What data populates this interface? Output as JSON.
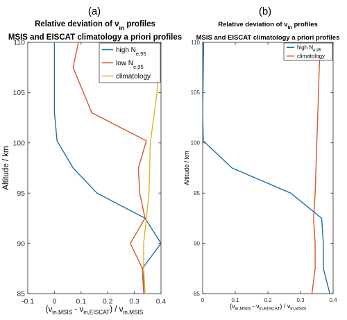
{
  "chart_data": [
    {
      "type": "line",
      "panel_label": "(a)",
      "title_line1": "Relative deviation of ν",
      "title_sub": "in",
      "title_line1_suffix": " profiles",
      "title_line2": "MSIS and EISCAT climatology a priori profiles",
      "xlabel_parts": [
        "(ν",
        "in,MSIS",
        " - ν",
        "in,EISCAT",
        ") / ν",
        "in,MSIS"
      ],
      "ylabel": "Altitude / km",
      "xlim": [
        -0.1,
        0.4
      ],
      "ylim": [
        85,
        110
      ],
      "xticks": [
        -0.1,
        0,
        0.1,
        0.2,
        0.3,
        0.4
      ],
      "xtick_labels": [
        "-0.1",
        "0",
        "0.1",
        "0.2",
        "0.3",
        "0.4"
      ],
      "yticks": [
        85,
        90,
        95,
        100,
        105,
        110
      ],
      "ytick_labels": [
        "85",
        "90",
        "95",
        "100",
        "105",
        "110"
      ],
      "legend_position": "top-right",
      "series": [
        {
          "name": "high N",
          "name_sub": "e,95",
          "color": "#1f6fa8",
          "points": [
            [
              0,
              110
            ],
            [
              0,
              103
            ],
            [
              0.01,
              100.2
            ],
            [
              0.07,
              97.5
            ],
            [
              0.16,
              95
            ],
            [
              0.34,
              92.5
            ],
            [
              0.4,
              90
            ],
            [
              0.33,
              87.5
            ],
            [
              0.34,
              85
            ]
          ]
        },
        {
          "name": "low N",
          "name_sub": "e,95",
          "color": "#d4582a",
          "points": [
            [
              0.09,
              110
            ],
            [
              0.07,
              107.5
            ],
            [
              0.14,
              103
            ],
            [
              0.345,
              100.2
            ],
            [
              0.315,
              97.5
            ],
            [
              0.32,
              95
            ],
            [
              0.34,
              92.5
            ],
            [
              0.285,
              90
            ],
            [
              0.33,
              87.5
            ],
            [
              0.335,
              85
            ]
          ]
        },
        {
          "name": "climatology",
          "name_sub": "",
          "color": "#e3b21b",
          "points": [
            [
              0.395,
              110
            ],
            [
              0.385,
              105
            ],
            [
              0.36,
              100
            ],
            [
              0.355,
              95
            ],
            [
              0.345,
              92.5
            ],
            [
              0.335,
              90
            ],
            [
              0.335,
              87.5
            ],
            [
              0.34,
              85
            ]
          ]
        }
      ]
    },
    {
      "type": "line",
      "panel_label": "(b)",
      "title_line1": "Relative deviation of ν",
      "title_sub": "in",
      "title_line1_suffix": " profiles",
      "title_line2": "MSIS and EISCAT climatology a priori profiles",
      "xlabel_parts": [
        "(ν",
        "in,MSIS",
        " - ν",
        "in,EISCAT",
        ") / ν",
        "in,MSIS"
      ],
      "ylabel": "Altitude / km",
      "xlim": [
        0,
        0.4
      ],
      "ylim": [
        85,
        110
      ],
      "xticks": [
        0,
        0.1,
        0.2,
        0.3,
        0.4
      ],
      "xtick_labels": [
        "0",
        "0.1",
        "0.2",
        "0.3",
        "0.4"
      ],
      "yticks": [
        85,
        90,
        95,
        100,
        105,
        110
      ],
      "ytick_labels": [
        "85",
        "90",
        "95",
        "100",
        "105",
        "110"
      ],
      "legend_position": "top-right",
      "series": [
        {
          "name": "high N",
          "name_sub": "e,95",
          "color": "#1f6fa8",
          "points": [
            [
              0.003,
              110
            ],
            [
              0.001,
              105
            ],
            [
              0.0,
              103
            ],
            [
              0.002,
              100.2
            ],
            [
              0.09,
              97.5
            ],
            [
              0.27,
              95
            ],
            [
              0.365,
              92.5
            ],
            [
              0.37,
              90
            ],
            [
              0.37,
              87.5
            ],
            [
              0.39,
              85
            ]
          ]
        },
        {
          "name": "climatology",
          "name_sub": "",
          "color": "#d4582a",
          "points": [
            [
              0.36,
              110
            ],
            [
              0.355,
              105
            ],
            [
              0.35,
              100
            ],
            [
              0.345,
              95
            ],
            [
              0.34,
              92.5
            ],
            [
              0.345,
              90
            ],
            [
              0.345,
              87.5
            ],
            [
              0.335,
              85
            ]
          ]
        }
      ]
    }
  ]
}
